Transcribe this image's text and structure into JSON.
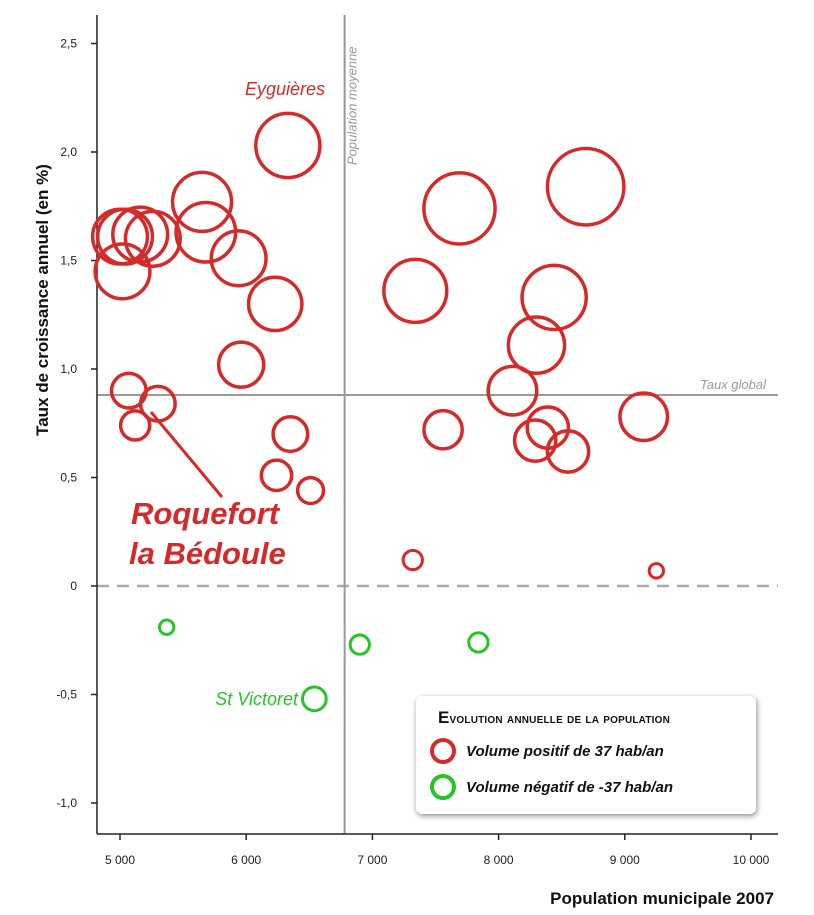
{
  "chart_data": {
    "type": "scatter",
    "xlabel": "Population municipale 2007",
    "ylabel": "Taux de croissance annuel (en %)",
    "xlim": [
      4800,
      10200
    ],
    "ylim": [
      -1.15,
      2.75
    ],
    "x_ticks": [
      {
        "value": 5000,
        "label": "5 000"
      },
      {
        "value": 6000,
        "label": "6 000"
      },
      {
        "value": 7000,
        "label": "7 000"
      },
      {
        "value": 8000,
        "label": "8 000"
      },
      {
        "value": 9000,
        "label": "9 000"
      },
      {
        "value": 10000,
        "label": "10 000"
      }
    ],
    "y_ticks": [
      {
        "value": 2.5,
        "label": "2,5"
      },
      {
        "value": 2.0,
        "label": "2,0"
      },
      {
        "value": 1.5,
        "label": "1,5"
      },
      {
        "value": 1.0,
        "label": "1,0"
      },
      {
        "value": 0.5,
        "label": "0,5"
      },
      {
        "value": 0,
        "label": "0"
      },
      {
        "value": -0.5,
        "label": "-0,5"
      },
      {
        "value": -1.0,
        "label": "-1,0"
      }
    ],
    "reference_lines": {
      "population_moyenne": {
        "x": 6780,
        "label": "Population moyenne"
      },
      "taux_global": {
        "y": 0.88,
        "label": "Taux global"
      }
    },
    "colors": {
      "positive": "#d42a2a",
      "negative": "#27c427",
      "reference": "#999999",
      "axis": "#222222"
    },
    "series": [
      {
        "type": "positive",
        "points": [
          {
            "x": 6330,
            "y": 2.03,
            "volume": 120
          },
          {
            "x": 5650,
            "y": 1.77,
            "volume": 100
          },
          {
            "x": 5680,
            "y": 1.63,
            "volume": 102
          },
          {
            "x": 5000,
            "y": 1.61,
            "volume": 85
          },
          {
            "x": 5040,
            "y": 1.61,
            "volume": 85
          },
          {
            "x": 5160,
            "y": 1.62,
            "volume": 85
          },
          {
            "x": 5260,
            "y": 1.6,
            "volume": 85
          },
          {
            "x": 5020,
            "y": 1.45,
            "volume": 85
          },
          {
            "x": 5940,
            "y": 1.51,
            "volume": 85
          },
          {
            "x": 6230,
            "y": 1.3,
            "volume": 80
          },
          {
            "x": 5960,
            "y": 1.02,
            "volume": 55
          },
          {
            "x": 5070,
            "y": 0.9,
            "volume": 30
          },
          {
            "x": 5300,
            "y": 0.84,
            "volume": 30
          },
          {
            "x": 5120,
            "y": 0.74,
            "volume": 20
          },
          {
            "x": 6350,
            "y": 0.7,
            "volume": 30
          },
          {
            "x": 6240,
            "y": 0.51,
            "volume": 22
          },
          {
            "x": 6510,
            "y": 0.44,
            "volume": 15
          },
          {
            "x": 7690,
            "y": 1.74,
            "volume": 150
          },
          {
            "x": 8690,
            "y": 1.84,
            "volume": 175
          },
          {
            "x": 7340,
            "y": 1.36,
            "volume": 115
          },
          {
            "x": 8440,
            "y": 1.33,
            "volume": 120
          },
          {
            "x": 8300,
            "y": 1.11,
            "volume": 90
          },
          {
            "x": 8110,
            "y": 0.9,
            "volume": 65
          },
          {
            "x": 7560,
            "y": 0.72,
            "volume": 38
          },
          {
            "x": 8390,
            "y": 0.73,
            "volume": 45
          },
          {
            "x": 8290,
            "y": 0.67,
            "volume": 45
          },
          {
            "x": 8550,
            "y": 0.62,
            "volume": 45
          },
          {
            "x": 9150,
            "y": 0.78,
            "volume": 62
          },
          {
            "x": 7320,
            "y": 0.12,
            "volume": 7
          },
          {
            "x": 9250,
            "y": 0.07,
            "volume": 3
          }
        ]
      },
      {
        "type": "negative",
        "points": [
          {
            "x": 5370,
            "y": -0.19,
            "volume": 3
          },
          {
            "x": 6540,
            "y": -0.52,
            "volume": 12
          },
          {
            "x": 6900,
            "y": -0.27,
            "volume": 7
          },
          {
            "x": 7840,
            "y": -0.26,
            "volume": 7
          }
        ]
      }
    ],
    "annotations": [
      {
        "text": "Eyguières",
        "x": 6330,
        "y": 2.03
      },
      {
        "text": "Roquefort",
        "x": 5070,
        "y": 0.9
      },
      {
        "text": "la Bédoule",
        "x": 5070,
        "y": 0.9
      },
      {
        "text": "St Victoret",
        "x": 6540,
        "y": -0.52
      }
    ]
  },
  "legend": {
    "title_first": "E",
    "title_rest": "volution annuelle de la population",
    "positive_label": "Volume positif de 37 hab/an",
    "negative_label": "Volume négatif de -37 hab/an"
  }
}
